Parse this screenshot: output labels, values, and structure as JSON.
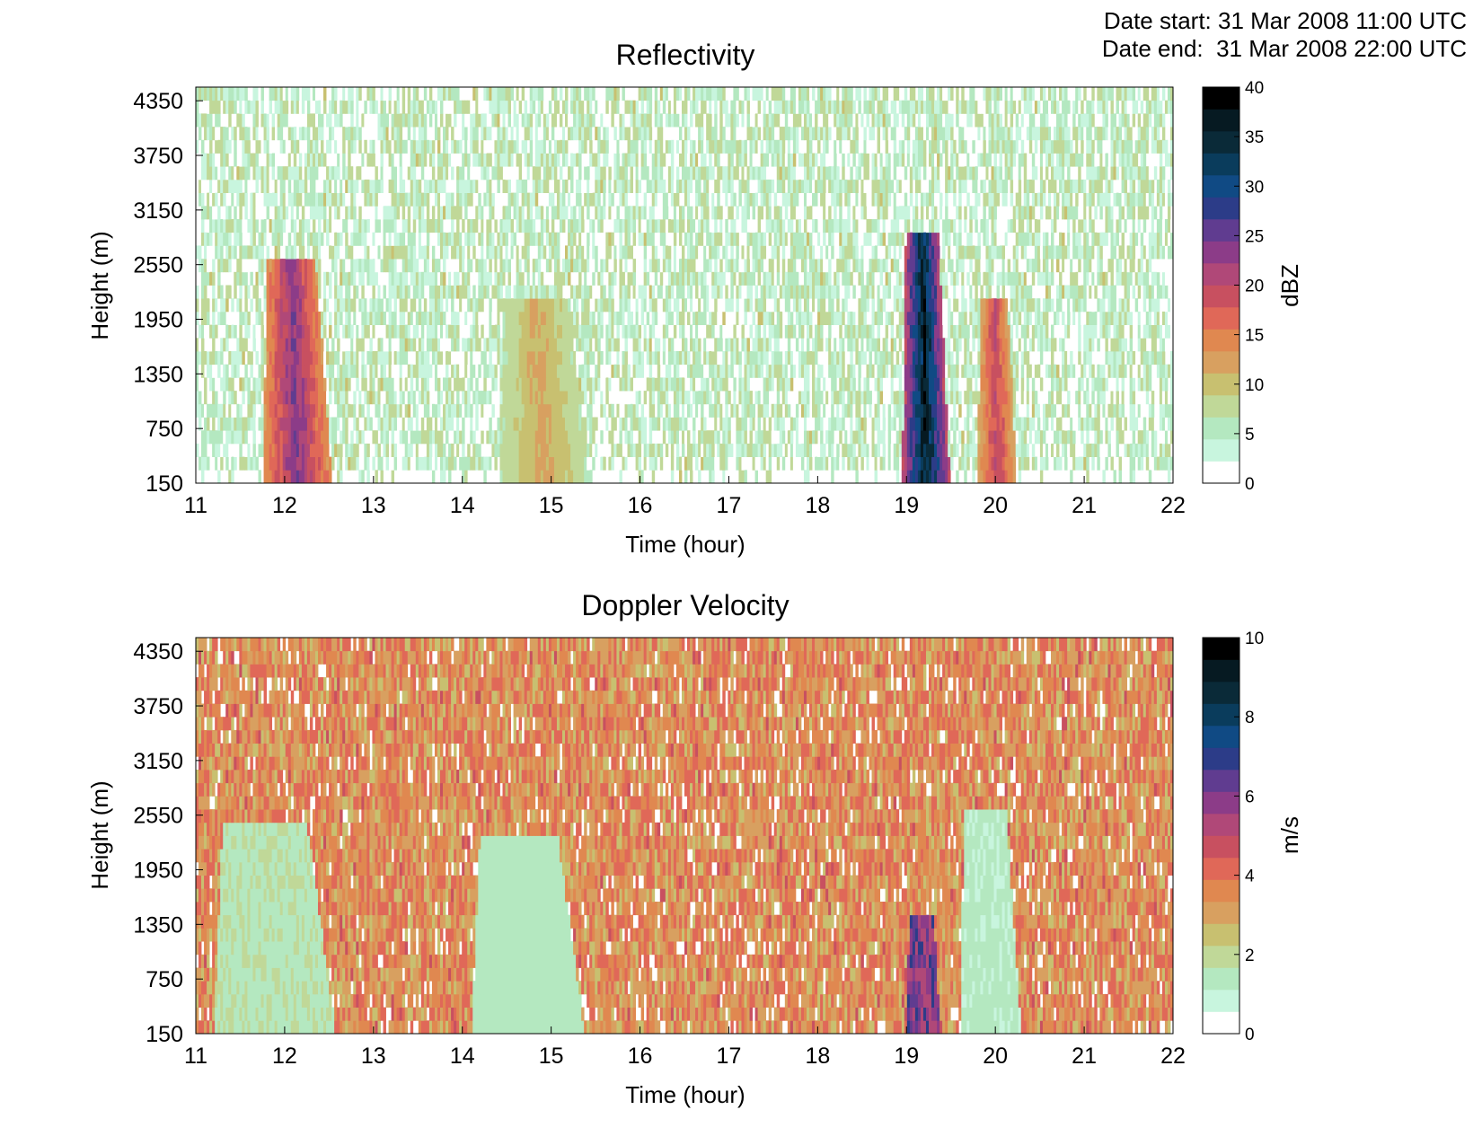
{
  "header": {
    "date_start": "Date start: 31 Mar 2008 11:00 UTC",
    "date_end": "Date end:  31 Mar 2008 22:00 UTC"
  },
  "chart_data": [
    {
      "type": "heatmap",
      "title": "Reflectivity",
      "xlabel": "Time (hour)",
      "ylabel": "Height (m)",
      "xlim": [
        11,
        22
      ],
      "ylim": [
        150,
        4500
      ],
      "x_ticks": [
        "11",
        "12",
        "13",
        "14",
        "15",
        "16",
        "17",
        "18",
        "19",
        "20",
        "21",
        "22"
      ],
      "y_ticks": [
        "150",
        "750",
        "1350",
        "1950",
        "2550",
        "3150",
        "3750",
        "4350"
      ],
      "colorbar": {
        "label": "dBZ",
        "range": [
          0,
          40
        ],
        "ticks": [
          "0",
          "5",
          "10",
          "15",
          "20",
          "25",
          "30",
          "35",
          "40"
        ]
      },
      "background_range": [
        1,
        9
      ],
      "features": [
        {
          "x_start": 11.75,
          "x_end": 12.55,
          "y_top": 2600,
          "value": 24
        },
        {
          "x_start": 14.4,
          "x_end": 15.45,
          "y_top": 2200,
          "value": 12
        },
        {
          "x_start": 18.95,
          "x_end": 19.5,
          "y_top": 2900,
          "value": 36
        },
        {
          "x_start": 19.8,
          "x_end": 20.25,
          "y_top": 2200,
          "value": 20
        }
      ]
    },
    {
      "type": "heatmap",
      "title": "Doppler Velocity",
      "xlabel": "Time (hour)",
      "ylabel": "Height (m)",
      "xlim": [
        11,
        22
      ],
      "ylim": [
        150,
        4500
      ],
      "x_ticks": [
        "11",
        "12",
        "13",
        "14",
        "15",
        "16",
        "17",
        "18",
        "19",
        "20",
        "21",
        "22"
      ],
      "y_ticks": [
        "150",
        "750",
        "1350",
        "1950",
        "2550",
        "3150",
        "3750",
        "4350"
      ],
      "colorbar": {
        "label": "m/s",
        "range": [
          0,
          10
        ],
        "ticks": [
          "0",
          "2",
          "4",
          "6",
          "8",
          "10"
        ]
      },
      "background_range": [
        2.5,
        4.5
      ],
      "features": [
        {
          "x_start": 11.2,
          "x_end": 12.6,
          "y_top": 2500,
          "value": 1.6
        },
        {
          "x_start": 14.1,
          "x_end": 15.4,
          "y_top": 2300,
          "value": 1.4
        },
        {
          "x_start": 19.0,
          "x_end": 19.4,
          "y_top": 1500,
          "value": 6
        },
        {
          "x_start": 19.6,
          "x_end": 20.3,
          "y_top": 2600,
          "value": 1.2
        }
      ]
    }
  ],
  "colormap": [
    "#ffffff",
    "#c8f5de",
    "#b4e8c0",
    "#c0d898",
    "#c8c070",
    "#d8a060",
    "#e08850",
    "#e06858",
    "#c85060",
    "#b04878",
    "#8c3c88",
    "#603c90",
    "#2c3c88",
    "#104a84",
    "#0a3c5c",
    "#0a2a38",
    "#061a22",
    "#000000"
  ]
}
